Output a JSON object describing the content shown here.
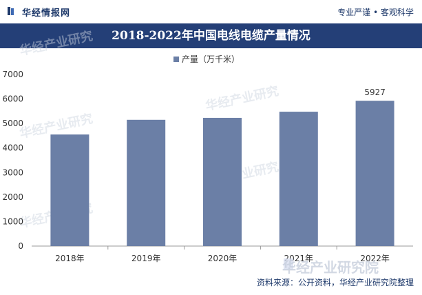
{
  "header": {
    "brand_name": "华经情报网",
    "slogan": "专业严谨 • 客观科学"
  },
  "source_text": "资料来源：公开资料，华经产业研究院整理",
  "watermark": {
    "big_text": "华经产业研究院",
    "small_text": "华经产业研究"
  },
  "colors": {
    "bar": "#6b7fa6",
    "title_band": "#243f77",
    "brand": "#1f3a6b"
  },
  "icons": {
    "brand": "brand-logo-icon"
  },
  "chart_data": {
    "type": "bar",
    "title": "2018-2022年中国电线电缆产量情况",
    "xlabel": "",
    "ylabel": "",
    "categories": [
      "2018年",
      "2019年",
      "2020年",
      "2021年",
      "2022年"
    ],
    "series": [
      {
        "name": "产量（万千米）",
        "values": [
          4550,
          5150,
          5230,
          5480,
          5927
        ]
      }
    ],
    "data_labels": {
      "4": "5927"
    },
    "y_ticks": [
      0,
      1000,
      2000,
      3000,
      4000,
      5000,
      6000,
      7000
    ],
    "ylim": [
      0,
      7000
    ],
    "grid": false,
    "legend": "top-center"
  }
}
